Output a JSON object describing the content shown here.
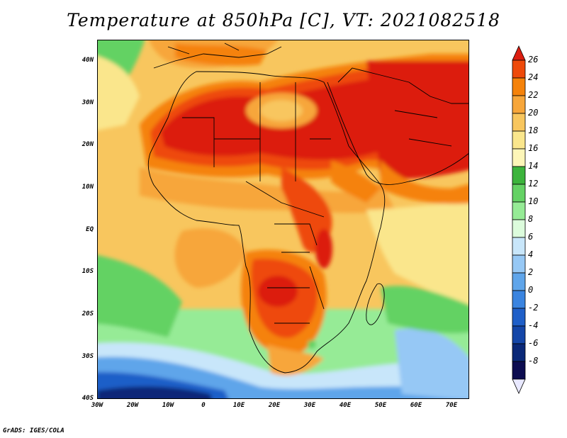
{
  "title": "Temperature at 850hPa [C], VT: 2021082518",
  "credit": "GrADS: IGES/COLA",
  "map": {
    "region": "Africa",
    "lon_range": [
      -30,
      75
    ],
    "lat_range": [
      -40,
      45
    ],
    "lat_ticks": [
      "40N",
      "30N",
      "20N",
      "10N",
      "EQ",
      "10S",
      "20S",
      "30S",
      "40S"
    ],
    "lon_ticks": [
      "30W",
      "20W",
      "10W",
      "0",
      "10E",
      "20E",
      "30E",
      "40E",
      "50E",
      "60E",
      "70E"
    ]
  },
  "colorbar": {
    "labels": [
      "26",
      "24",
      "22",
      "20",
      "18",
      "16",
      "14",
      "12",
      "10",
      "8",
      "6",
      "4",
      "2",
      "0",
      "-2",
      "-4",
      "-6",
      "-8"
    ],
    "colors": [
      "#dc1e10",
      "#ee4a0a",
      "#f5820a",
      "#f7a63a",
      "#f8c65e",
      "#fae68c",
      "#fdf6b8",
      "#3cb43c",
      "#64d264",
      "#96eb96",
      "#dcfcdc",
      "#c8e6fa",
      "#96c8f5",
      "#5fa5ea",
      "#3a84e0",
      "#1f5fc8",
      "#1446a8",
      "#0a2878",
      "#0c0c50"
    ],
    "triangle_bottom": "#e8e8ff"
  }
}
